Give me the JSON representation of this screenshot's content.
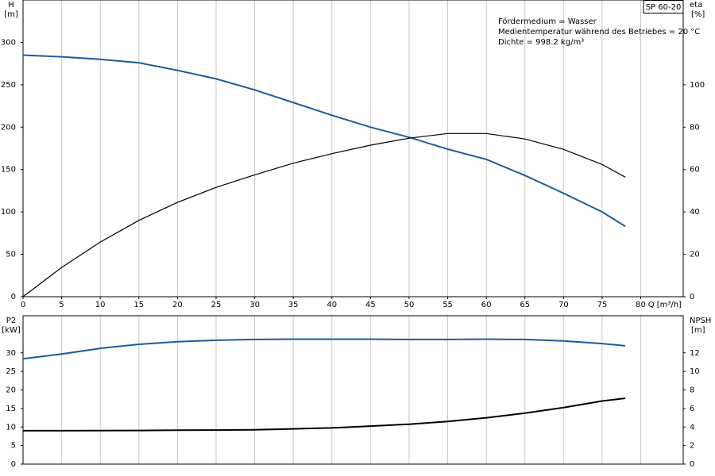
{
  "chart_data": [
    {
      "type": "line",
      "y_label": "H",
      "y_unit": "[m]",
      "y2_label": "eta",
      "y2_unit": "[%]",
      "x_label": "Q [m³/h]",
      "notes": [
        "Fördermedium = Wasser",
        "Medientemperatur während des Betriebes = 20 °C",
        "Dichte = 998.2 kg/m³"
      ],
      "pump": "SP 60-20",
      "x": [
        0,
        5,
        10,
        15,
        20,
        25,
        30,
        35,
        40,
        45,
        50,
        55,
        60,
        65,
        70,
        75,
        78
      ],
      "xlim": [
        0,
        85.5
      ],
      "xticks": [
        0,
        5,
        10,
        15,
        20,
        25,
        30,
        35,
        40,
        45,
        50,
        55,
        60,
        65,
        70,
        75,
        80
      ],
      "ylim": [
        0,
        350
      ],
      "yticks": [
        0,
        50,
        100,
        150,
        200,
        250,
        300
      ],
      "y2lim": [
        0,
        140
      ],
      "y2ticks": [
        0,
        20,
        40,
        60,
        80,
        100
      ],
      "grid": true,
      "series": [
        {
          "color": "#1f5a96",
          "values": [
            285,
            283,
            280,
            276,
            267,
            257,
            244,
            229,
            214,
            200,
            188,
            174,
            162,
            143,
            122,
            100,
            83
          ]
        },
        {
          "color": "#000000",
          "axis": "y2",
          "values": [
            0,
            13.8,
            25.8,
            36,
            44.5,
            51.6,
            57.5,
            63,
            67.5,
            71.5,
            74.8,
            77,
            77,
            74.4,
            69.5,
            62.4,
            56.4
          ]
        }
      ]
    },
    {
      "type": "line",
      "y_label": "P2",
      "y_unit": "[kW]",
      "y2_label": "NPSH",
      "y2_unit": "[m]",
      "x": [
        0,
        5,
        10,
        15,
        20,
        25,
        30,
        35,
        40,
        45,
        50,
        55,
        60,
        65,
        70,
        75,
        78
      ],
      "xlim": [
        0,
        85.5
      ],
      "xticks": [
        0,
        5,
        10,
        15,
        20,
        25,
        30,
        35,
        40,
        45,
        50,
        55,
        60,
        65,
        70,
        75,
        80
      ],
      "ylim": [
        0,
        40
      ],
      "yticks": [
        0,
        5,
        10,
        15,
        20,
        25,
        30
      ],
      "y2lim": [
        0,
        16
      ],
      "y2ticks": [
        0,
        2,
        4,
        6,
        8,
        10,
        12
      ],
      "grid": true,
      "series": [
        {
          "color": "#1f5a96",
          "values": [
            28.4,
            29.7,
            31.2,
            32.3,
            33,
            33.4,
            33.6,
            33.7,
            33.7,
            33.7,
            33.6,
            33.6,
            33.7,
            33.6,
            33.2,
            32.5,
            31.9
          ]
        },
        {
          "color": "#000000",
          "axis": "y2",
          "values": [
            3.6,
            3.6,
            3.62,
            3.63,
            3.65,
            3.67,
            3.7,
            3.8,
            3.9,
            4.1,
            4.3,
            4.6,
            5.0,
            5.5,
            6.1,
            6.8,
            7.1
          ]
        }
      ]
    }
  ]
}
